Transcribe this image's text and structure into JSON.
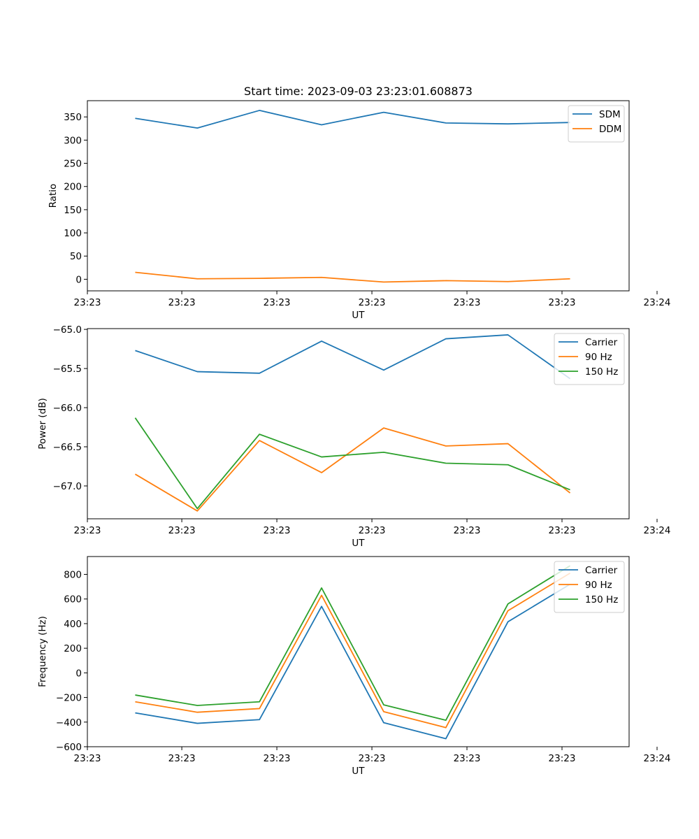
{
  "chart_data": [
    {
      "type": "line",
      "title": "Start time: 2023-09-03 23:23:01.608873",
      "xlabel": "UT",
      "ylabel": "Ratio",
      "x": [
        1,
        2,
        3,
        4,
        5,
        6,
        7,
        8
      ],
      "xlim": [
        0.23,
        8.95
      ],
      "xticks": [
        {
          "pos": 0.23,
          "label": "23:23"
        },
        {
          "pos": 1.75,
          "label": "23:23"
        },
        {
          "pos": 3.28,
          "label": "23:23"
        },
        {
          "pos": 4.81,
          "label": "23:23"
        },
        {
          "pos": 6.34,
          "label": "23:23"
        },
        {
          "pos": 7.87,
          "label": "23:23"
        },
        {
          "pos": 9.4,
          "label": "23:24"
        }
      ],
      "ylim": [
        -25,
        385
      ],
      "yticks": [
        0,
        50,
        100,
        150,
        200,
        250,
        300,
        350
      ],
      "ytick_labels": [
        "0",
        "50",
        "100",
        "150",
        "200",
        "250",
        "300",
        "350"
      ],
      "legend_position": "top-right",
      "series": [
        {
          "name": "SDM",
          "color": "#1f77b4",
          "values": [
            347,
            326,
            364,
            333,
            360,
            337,
            335,
            338
          ]
        },
        {
          "name": "DDM",
          "color": "#ff7f0e",
          "values": [
            15,
            1,
            2,
            4,
            -6,
            -3,
            -5,
            1
          ]
        }
      ]
    },
    {
      "type": "line",
      "title": "",
      "xlabel": "UT",
      "ylabel": "Power (dB)",
      "x": [
        1,
        2,
        3,
        4,
        5,
        6,
        7,
        8
      ],
      "xlim": [
        0.23,
        8.95
      ],
      "xticks": [
        {
          "pos": 0.23,
          "label": "23:23"
        },
        {
          "pos": 1.75,
          "label": "23:23"
        },
        {
          "pos": 3.28,
          "label": "23:23"
        },
        {
          "pos": 4.81,
          "label": "23:23"
        },
        {
          "pos": 6.34,
          "label": "23:23"
        },
        {
          "pos": 7.87,
          "label": "23:23"
        },
        {
          "pos": 9.4,
          "label": "23:24"
        }
      ],
      "ylim": [
        -67.42,
        -64.99
      ],
      "yticks": [
        -67.0,
        -66.5,
        -66.0,
        -65.5,
        -65.0
      ],
      "ytick_labels": [
        "−67.0",
        "−66.5",
        "−66.0",
        "−65.5",
        "−65.0"
      ],
      "legend_position": "top-right",
      "series": [
        {
          "name": "Carrier",
          "color": "#1f77b4",
          "values": [
            -65.27,
            -65.54,
            -65.56,
            -65.15,
            -65.52,
            -65.12,
            -65.07,
            -65.63
          ]
        },
        {
          "name": "90 Hz",
          "color": "#ff7f0e",
          "values": [
            -66.85,
            -67.32,
            -66.42,
            -66.83,
            -66.26,
            -66.49,
            -66.46,
            -67.09
          ]
        },
        {
          "name": "150 Hz",
          "color": "#2ca02c",
          "values": [
            -66.13,
            -67.29,
            -66.34,
            -66.63,
            -66.57,
            -66.71,
            -66.73,
            -67.05
          ]
        }
      ]
    },
    {
      "type": "line",
      "title": "",
      "xlabel": "UT",
      "ylabel": "Frequency (Hz)",
      "x": [
        1,
        2,
        3,
        4,
        5,
        6,
        7,
        8
      ],
      "xlim": [
        0.23,
        8.95
      ],
      "xticks": [
        {
          "pos": 0.23,
          "label": "23:23"
        },
        {
          "pos": 1.75,
          "label": "23:23"
        },
        {
          "pos": 3.28,
          "label": "23:23"
        },
        {
          "pos": 4.81,
          "label": "23:23"
        },
        {
          "pos": 6.34,
          "label": "23:23"
        },
        {
          "pos": 7.87,
          "label": "23:23"
        },
        {
          "pos": 9.4,
          "label": "23:24"
        }
      ],
      "ylim": [
        -600,
        945
      ],
      "yticks": [
        -600,
        -400,
        -200,
        0,
        200,
        400,
        600,
        800
      ],
      "ytick_labels": [
        "−600",
        "−400",
        "−200",
        "0",
        "200",
        "400",
        "600",
        "800"
      ],
      "legend_position": "top-right",
      "series": [
        {
          "name": "Carrier",
          "color": "#1f77b4",
          "values": [
            -325,
            -410,
            -380,
            540,
            -405,
            -535,
            415,
            720
          ]
        },
        {
          "name": "90 Hz",
          "color": "#ff7f0e",
          "values": [
            -235,
            -320,
            -290,
            630,
            -315,
            -445,
            505,
            810
          ]
        },
        {
          "name": "150 Hz",
          "color": "#2ca02c",
          "values": [
            -180,
            -265,
            -235,
            690,
            -260,
            -385,
            560,
            870
          ]
        }
      ]
    }
  ]
}
